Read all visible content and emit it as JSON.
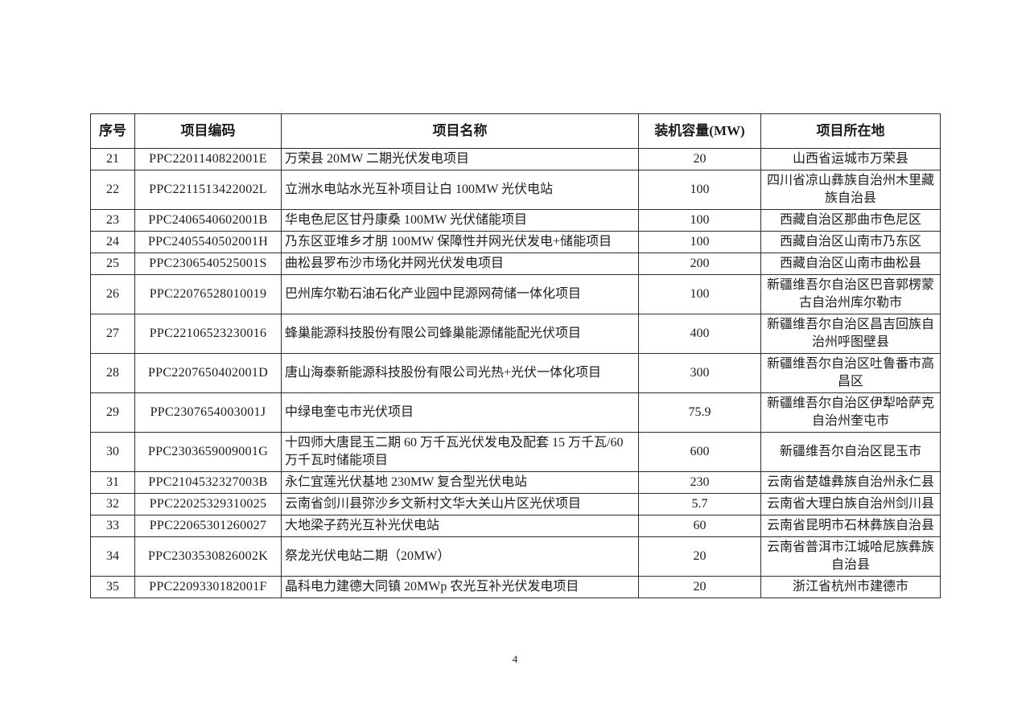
{
  "table": {
    "headers": [
      "序号",
      "项目编码",
      "项目名称",
      "装机容量(MW)",
      "项目所在地"
    ],
    "rows": [
      {
        "seq": "21",
        "code": "PPC2201140822001E",
        "name": "万荣县 20MW 二期光伏发电项目",
        "capacity": "20",
        "location": "山西省运城市万荣县"
      },
      {
        "seq": "22",
        "code": "PPC2211513422002L",
        "name": "立洲水电站水光互补项目让白 100MW 光伏电站",
        "capacity": "100",
        "location": "四川省凉山彝族自治州木里藏族自治县"
      },
      {
        "seq": "23",
        "code": "PPC2406540602001B",
        "name": "华电色尼区甘丹康桑 100MW 光伏储能项目",
        "capacity": "100",
        "location": "西藏自治区那曲市色尼区"
      },
      {
        "seq": "24",
        "code": "PPC2405540502001H",
        "name": "乃东区亚堆乡才朋 100MW 保障性并网光伏发电+储能项目",
        "capacity": "100",
        "location": "西藏自治区山南市乃东区"
      },
      {
        "seq": "25",
        "code": "PPC2306540525001S",
        "name": "曲松县罗布沙市场化并网光伏发电项目",
        "capacity": "200",
        "location": "西藏自治区山南市曲松县"
      },
      {
        "seq": "26",
        "code": "PPC22076528010019",
        "name": "巴州库尔勒石油石化产业园中昆源网荷储一体化项目",
        "capacity": "100",
        "location": "新疆维吾尔自治区巴音郭楞蒙古自治州库尔勒市"
      },
      {
        "seq": "27",
        "code": "PPC22106523230016",
        "name": "蜂巢能源科技股份有限公司蜂巢能源储能配光伏项目",
        "capacity": "400",
        "location": "新疆维吾尔自治区昌吉回族自治州呼图壁县"
      },
      {
        "seq": "28",
        "code": "PPC2207650402001D",
        "name": "唐山海泰新能源科技股份有限公司光热+光伏一体化项目",
        "capacity": "300",
        "location": "新疆维吾尔自治区吐鲁番市高昌区"
      },
      {
        "seq": "29",
        "code": "PPC2307654003001J",
        "name": "中绿电奎屯市光伏项目",
        "capacity": "75.9",
        "location": "新疆维吾尔自治区伊犁哈萨克自治州奎屯市"
      },
      {
        "seq": "30",
        "code": "PPC2303659009001G",
        "name": "十四师大唐昆玉二期 60 万千瓦光伏发电及配套 15 万千瓦/60 万千瓦时储能项目",
        "capacity": "600",
        "location": "新疆维吾尔自治区昆玉市"
      },
      {
        "seq": "31",
        "code": "PPC2104532327003B",
        "name": "永仁宜莲光伏基地 230MW 复合型光伏电站",
        "capacity": "230",
        "location": "云南省楚雄彝族自治州永仁县"
      },
      {
        "seq": "32",
        "code": "PPC22025329310025",
        "name": "云南省剑川县弥沙乡文新村文华大关山片区光伏项目",
        "capacity": "5.7",
        "location": "云南省大理白族自治州剑川县"
      },
      {
        "seq": "33",
        "code": "PPC22065301260027",
        "name": "大地梁子药光互补光伏电站",
        "capacity": "60",
        "location": "云南省昆明市石林彝族自治县"
      },
      {
        "seq": "34",
        "code": "PPC2303530826002K",
        "name": "祭龙光伏电站二期（20MW）",
        "capacity": "20",
        "location": "云南省普洱市江城哈尼族彝族自治县"
      },
      {
        "seq": "35",
        "code": "PPC2209330182001F",
        "name": "晶科电力建德大同镇 20MWp 农光互补光伏发电项目",
        "capacity": "20",
        "location": "浙江省杭州市建德市"
      }
    ]
  },
  "footer": {
    "page_number": "4"
  }
}
